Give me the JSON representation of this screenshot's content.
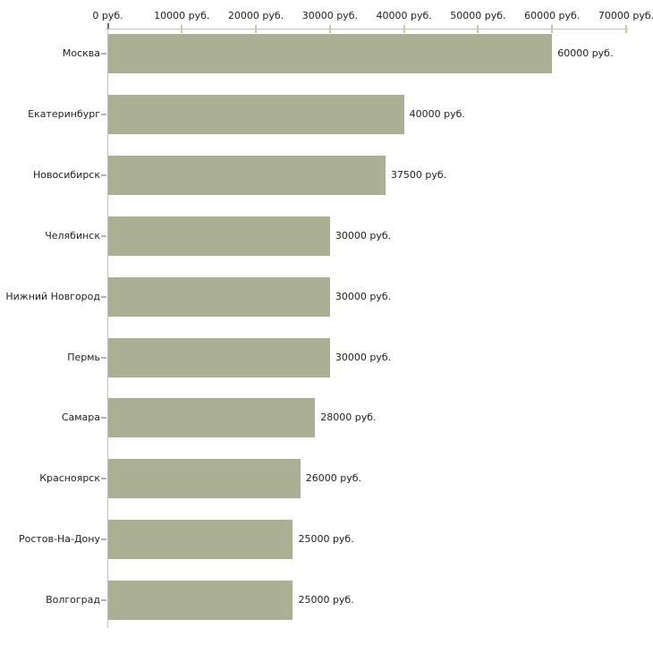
{
  "chart_data": {
    "type": "bar",
    "orientation": "horizontal",
    "title": "",
    "xlabel": "",
    "ylabel": "",
    "unit": "руб.",
    "xlim": [
      0,
      70000
    ],
    "grid": false,
    "legend": null,
    "categories": [
      "Москва",
      "Екатеринбург",
      "Новосибирск",
      "Челябинск",
      "Нижний Новгород",
      "Пермь",
      "Самара",
      "Красноярск",
      "Ростов-На-Дону",
      "Волгоград"
    ],
    "values": [
      60000,
      40000,
      37500,
      30000,
      30000,
      30000,
      28000,
      26000,
      25000,
      25000
    ],
    "value_labels": [
      "60000 руб.",
      "40000 руб.",
      "37500 руб.",
      "30000 руб.",
      "30000 руб.",
      "30000 руб.",
      "28000 руб.",
      "26000 руб.",
      "25000 руб.",
      "25000 руб."
    ],
    "x_ticks": [
      0,
      10000,
      20000,
      30000,
      40000,
      50000,
      60000,
      70000
    ],
    "x_tick_labels": [
      "0 руб.",
      "10000 руб.",
      "20000 руб.",
      "30000 руб.",
      "40000 руб.",
      "50000 руб.",
      "60000 руб.",
      "70000 руб."
    ],
    "colors": {
      "bar": "#abb094",
      "axis_line": "#c2c2c2",
      "value_tick": "#c9cba8",
      "zero_tick": "#6b6b6b",
      "category_tick": "#b3b3b3",
      "text": "#222222",
      "background": "#ffffff"
    }
  }
}
